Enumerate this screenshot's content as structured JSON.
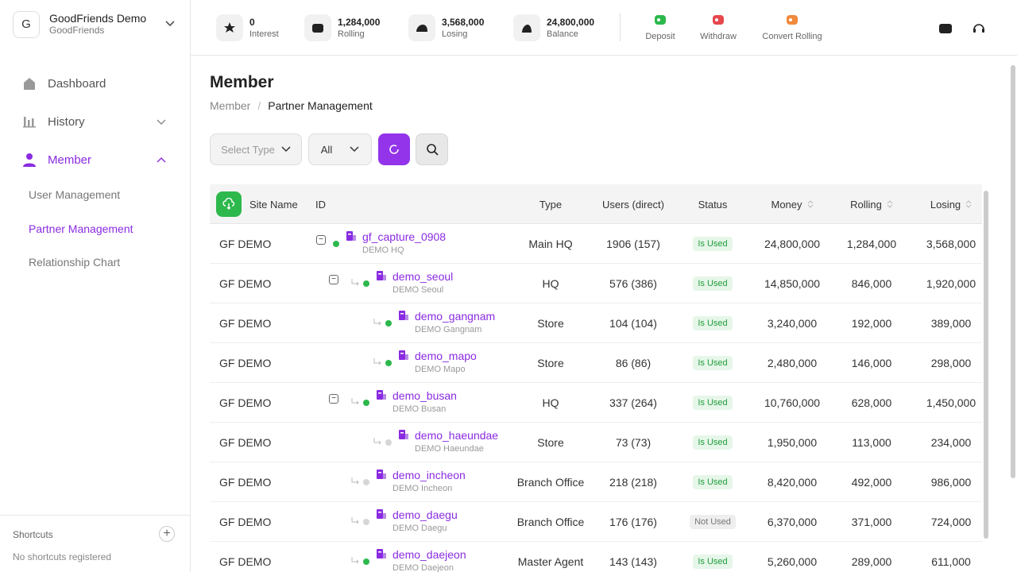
{
  "sidebar": {
    "avatar": "G",
    "workspace": "GoodFriends Demo",
    "workspace_sub": "GoodFriends",
    "nav": [
      {
        "label": "Dashboard"
      },
      {
        "label": "History"
      },
      {
        "label": "Member",
        "active": true
      }
    ],
    "subnav": [
      {
        "label": "User Management"
      },
      {
        "label": "Partner Management",
        "active": true
      },
      {
        "label": "Relationship Chart"
      }
    ],
    "shortcuts_title": "Shortcuts",
    "shortcuts_empty": "No shortcuts registered"
  },
  "topbar": {
    "stats": [
      {
        "value": "0",
        "label": "Interest"
      },
      {
        "value": "1,284,000",
        "label": "Rolling"
      },
      {
        "value": "3,568,000",
        "label": "Losing"
      },
      {
        "value": "24,800,000",
        "label": "Balance"
      }
    ],
    "actions": [
      {
        "label": "Deposit",
        "color": "#2db84c"
      },
      {
        "label": "Withdraw",
        "color": "#e5484d"
      },
      {
        "label": "Convert Rolling",
        "color": "#f08a3c"
      }
    ]
  },
  "page": {
    "title": "Member",
    "breadcrumb": [
      "Member",
      "Partner Management"
    ],
    "filters": [
      "Select Type",
      "All"
    ]
  },
  "table": {
    "headers": [
      "Site Name",
      "ID",
      "Type",
      "Users (direct)",
      "Status",
      "Money",
      "Rolling",
      "Losing"
    ],
    "rows": [
      {
        "site": "GF DEMO",
        "id": "gf_capture_0908",
        "name": "DEMO HQ",
        "type": "Main HQ",
        "users": "1906 (157)",
        "status": "Is Used",
        "money": "24,800,000",
        "rolling": "1,284,000",
        "losing": "3,568,000",
        "depth": 0,
        "expandable": true,
        "online": true
      },
      {
        "site": "GF DEMO",
        "id": "demo_seoul",
        "name": "DEMO Seoul",
        "type": "HQ",
        "users": "576 (386)",
        "status": "Is Used",
        "money": "14,850,000",
        "rolling": "846,000",
        "losing": "1,920,000",
        "depth": 1,
        "expandable": true,
        "online": true
      },
      {
        "site": "GF DEMO",
        "id": "demo_gangnam",
        "name": "DEMO Gangnam",
        "type": "Store",
        "users": "104 (104)",
        "status": "Is Used",
        "money": "3,240,000",
        "rolling": "192,000",
        "losing": "389,000",
        "depth": 2,
        "expandable": false,
        "online": true
      },
      {
        "site": "GF DEMO",
        "id": "demo_mapo",
        "name": "DEMO Mapo",
        "type": "Store",
        "users": "86 (86)",
        "status": "Is Used",
        "money": "2,480,000",
        "rolling": "146,000",
        "losing": "298,000",
        "depth": 2,
        "expandable": false,
        "online": true
      },
      {
        "site": "GF DEMO",
        "id": "demo_busan",
        "name": "DEMO Busan",
        "type": "HQ",
        "users": "337 (264)",
        "status": "Is Used",
        "money": "10,760,000",
        "rolling": "628,000",
        "losing": "1,450,000",
        "depth": 1,
        "expandable": true,
        "online": true
      },
      {
        "site": "GF DEMO",
        "id": "demo_haeundae",
        "name": "DEMO Haeundae",
        "type": "Store",
        "users": "73 (73)",
        "status": "Is Used",
        "money": "1,950,000",
        "rolling": "113,000",
        "losing": "234,000",
        "depth": 2,
        "expandable": false,
        "online": false
      },
      {
        "site": "GF DEMO",
        "id": "demo_incheon",
        "name": "DEMO Incheon",
        "type": "Branch Office",
        "users": "218 (218)",
        "status": "Is Used",
        "money": "8,420,000",
        "rolling": "492,000",
        "losing": "986,000",
        "depth": 1,
        "expandable": false,
        "online": false
      },
      {
        "site": "GF DEMO",
        "id": "demo_daegu",
        "name": "DEMO Daegu",
        "type": "Branch Office",
        "users": "176 (176)",
        "status": "Not Used",
        "money": "6,370,000",
        "rolling": "371,000",
        "losing": "724,000",
        "depth": 1,
        "expandable": false,
        "online": false
      },
      {
        "site": "GF DEMO",
        "id": "demo_daejeon",
        "name": "DEMO Daejeon",
        "type": "Master Agent",
        "users": "143 (143)",
        "status": "Is Used",
        "money": "5,260,000",
        "rolling": "289,000",
        "losing": "611,000",
        "depth": 1,
        "expandable": false,
        "online": true
      }
    ]
  }
}
